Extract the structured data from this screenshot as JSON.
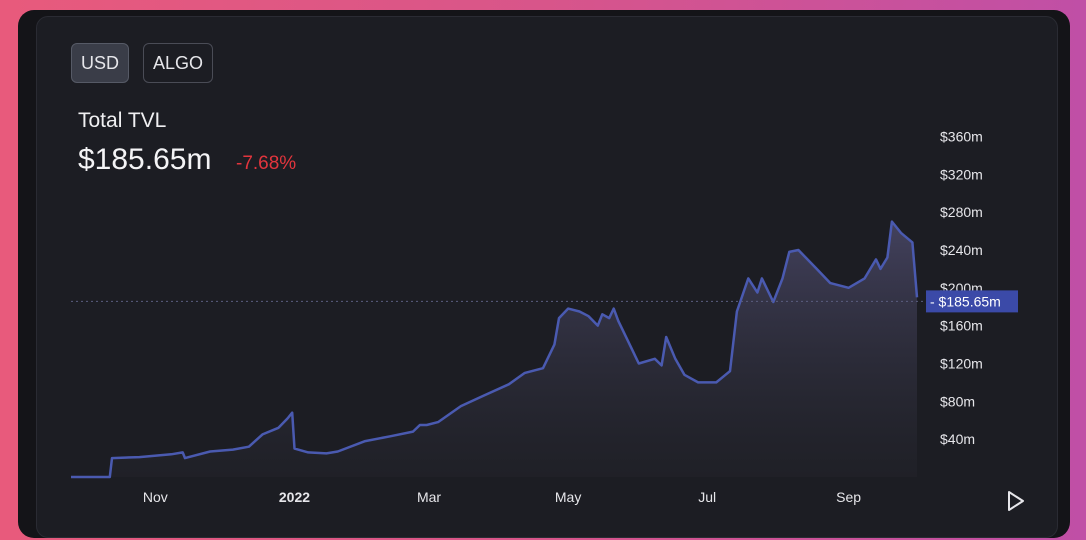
{
  "toggles": {
    "usd_label": "USD",
    "algo_label": "ALGO"
  },
  "header": {
    "title": "Total TVL",
    "value": "$185.65m",
    "change": "-7.68%"
  },
  "colors": {
    "line": "#4a5ab0",
    "negative": "#e2353d",
    "current_label_bg": "#3b4aa8"
  },
  "current_label": "- $185.65m",
  "chart_data": {
    "type": "area",
    "title": "Total TVL",
    "xlabel": "",
    "ylabel": "",
    "ylim": [
      0,
      370
    ],
    "x_ticks": [
      "Nov",
      "2022",
      "Mar",
      "May",
      "Jul",
      "Sep"
    ],
    "y_ticks": [
      "$40m",
      "$80m",
      "$120m",
      "$160m",
      "$200m",
      "$240m",
      "$280m",
      "$320m",
      "$360m"
    ],
    "y_tick_values": [
      40,
      80,
      120,
      160,
      200,
      240,
      280,
      320,
      360
    ],
    "reference_line": 185.65,
    "grid": false,
    "legend": "none",
    "series": [
      {
        "x": [
          "2021-09-25",
          "2021-10-05",
          "2021-10-12",
          "2021-10-13",
          "2021-10-25",
          "2021-11-08",
          "2021-11-13",
          "2021-11-14",
          "2021-11-25",
          "2021-12-05",
          "2021-12-12",
          "2021-12-18",
          "2021-12-25",
          "2021-12-29",
          "2021-12-31",
          "2022-01-01",
          "2022-01-07",
          "2022-01-15",
          "2022-01-20",
          "2022-02-01",
          "2022-02-12",
          "2022-02-22",
          "2022-02-25",
          "2022-02-28",
          "2022-03-05",
          "2022-03-15",
          "2022-03-25",
          "2022-04-05",
          "2022-04-12",
          "2022-04-20",
          "2022-04-25",
          "2022-04-27",
          "2022-05-01",
          "2022-05-06",
          "2022-05-10",
          "2022-05-14",
          "2022-05-16",
          "2022-05-19",
          "2022-05-21",
          "2022-05-23",
          "2022-05-28",
          "2022-06-01",
          "2022-06-08",
          "2022-06-11",
          "2022-06-13",
          "2022-06-17",
          "2022-06-21",
          "2022-06-27",
          "2022-07-05",
          "2022-07-09",
          "2022-07-11",
          "2022-07-14",
          "2022-07-19",
          "2022-07-23",
          "2022-07-25",
          "2022-07-30",
          "2022-08-03",
          "2022-08-06",
          "2022-08-10",
          "2022-08-18",
          "2022-08-24",
          "2022-09-01",
          "2022-09-08",
          "2022-09-13",
          "2022-09-15",
          "2022-09-18",
          "2022-09-20",
          "2022-09-24",
          "2022-09-29",
          "2022-10-01"
        ],
        "values": [
          0,
          0,
          0,
          20,
          21,
          24,
          26,
          20,
          27,
          29,
          32,
          45,
          52,
          62,
          68,
          30,
          26,
          25,
          27,
          38,
          43,
          48,
          55,
          55,
          58,
          75,
          86,
          98,
          110,
          115,
          140,
          168,
          178,
          175,
          170,
          160,
          172,
          168,
          178,
          165,
          140,
          120,
          125,
          118,
          148,
          125,
          108,
          100,
          100,
          108,
          112,
          175,
          210,
          195,
          210,
          185,
          210,
          238,
          240,
          220,
          205,
          200,
          210,
          230,
          220,
          232,
          270,
          258,
          248,
          190
        ]
      }
    ]
  }
}
